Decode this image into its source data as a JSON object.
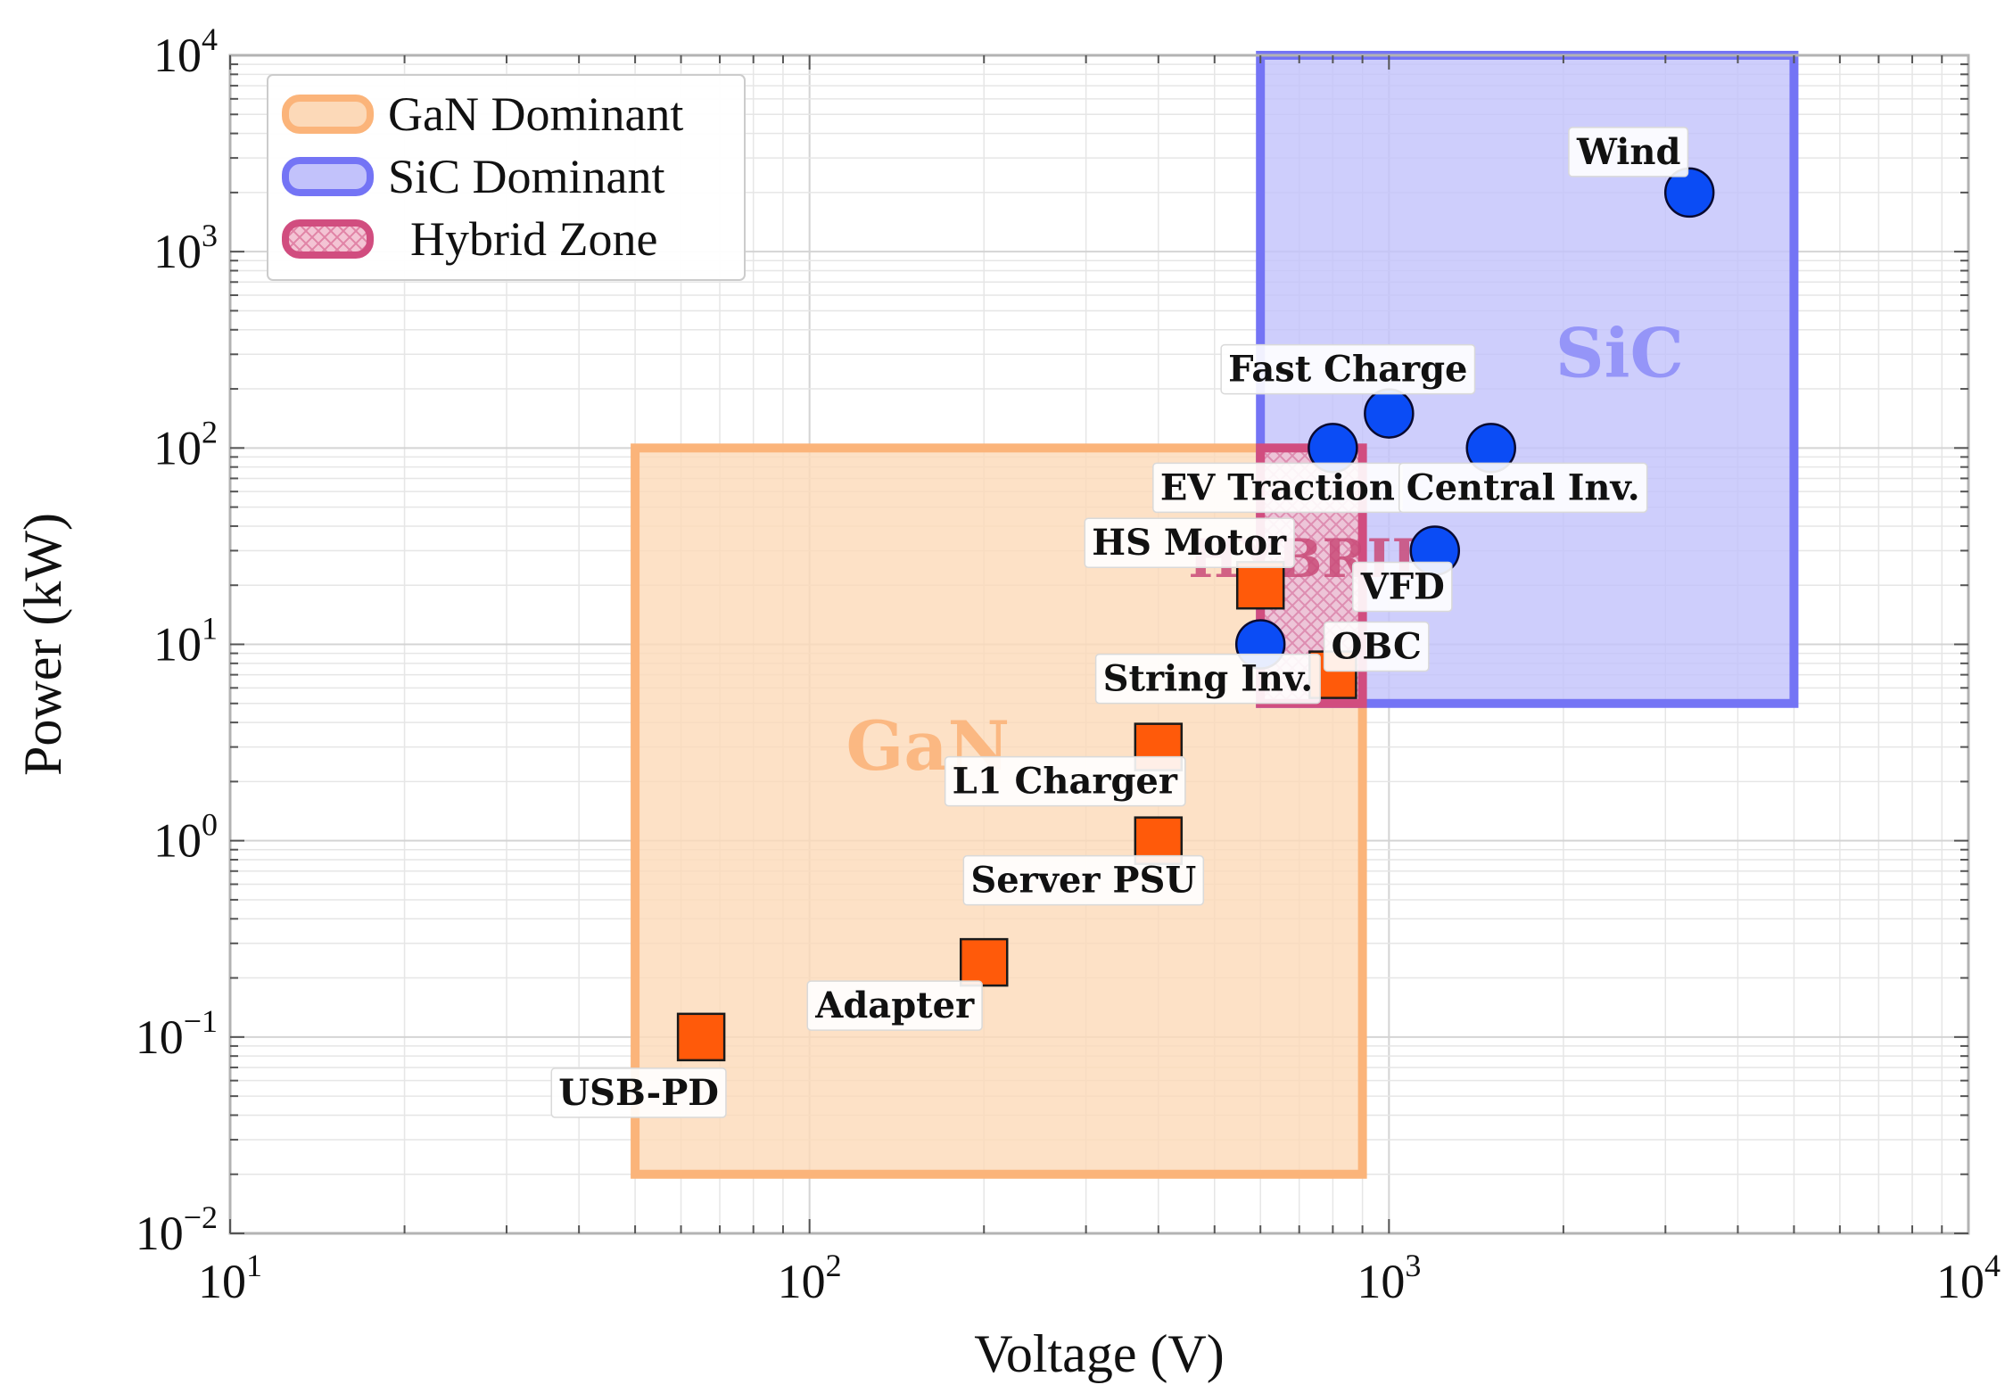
{
  "chart_data": {
    "type": "scatter",
    "xscale": "log",
    "yscale": "log",
    "xlim": [
      10,
      10000
    ],
    "ylim": [
      0.01,
      10000
    ],
    "xlabel": "Voltage (V)",
    "ylabel": "Power (kW)",
    "grid": true,
    "legend_position": "top-left",
    "x_tick_labels": [
      {
        "base": "10",
        "exp": "1",
        "value": 10
      },
      {
        "base": "10",
        "exp": "2",
        "value": 100
      },
      {
        "base": "10",
        "exp": "3",
        "value": 1000
      },
      {
        "base": "10",
        "exp": "4",
        "value": 10000
      }
    ],
    "y_tick_labels": [
      {
        "base": "10",
        "exp": "−2",
        "value": 0.01
      },
      {
        "base": "10",
        "exp": "−1",
        "value": 0.1
      },
      {
        "base": "10",
        "exp": "0",
        "value": 1
      },
      {
        "base": "10",
        "exp": "1",
        "value": 10
      },
      {
        "base": "10",
        "exp": "2",
        "value": 100
      },
      {
        "base": "10",
        "exp": "3",
        "value": 1000
      },
      {
        "base": "10",
        "exp": "4",
        "value": 10000
      }
    ],
    "regions": [
      {
        "name": "GaN Dominant",
        "region_label": "GaN",
        "x": [
          50,
          900
        ],
        "y": [
          0.02,
          100
        ],
        "fill": "#fcd9b8",
        "stroke": "#fbb47a",
        "label_color": "#fbb47a"
      },
      {
        "name": "SiC Dominant",
        "region_label": "SiC",
        "x": [
          600,
          5000
        ],
        "y": [
          5,
          10000
        ],
        "fill": "#c2c2fb",
        "stroke": "#7474f5",
        "label_color": "#8f8ff7"
      },
      {
        "name": "Hybrid Zone",
        "region_label": "HYBRID",
        "x": [
          600,
          900
        ],
        "y": [
          5,
          100
        ],
        "fill": "#f3c4d4",
        "stroke": "#d14d7f",
        "label_color": "#c94a78"
      }
    ],
    "series": [
      {
        "name": "GaN",
        "marker": "square",
        "color": "#ff5a0a",
        "points": [
          {
            "label": "USB-PD",
            "x": 65,
            "y": 0.1
          },
          {
            "label": "Adapter",
            "x": 200,
            "y": 0.24
          },
          {
            "label": "Server PSU",
            "x": 400,
            "y": 1
          },
          {
            "label": "L1 Charger",
            "x": 400,
            "y": 3
          },
          {
            "label": "String Inv.",
            "x": 800,
            "y": 7
          },
          {
            "label": "HS Motor",
            "x": 600,
            "y": 20
          }
        ]
      },
      {
        "name": "SiC",
        "marker": "circle",
        "color": "#0b4cf5",
        "points": [
          {
            "label": "OBC",
            "x": 600,
            "y": 10
          },
          {
            "label": "VFD",
            "x": 1200,
            "y": 30
          },
          {
            "label": "EV Traction",
            "x": 800,
            "y": 100
          },
          {
            "label": "Central Inv.",
            "x": 1500,
            "y": 100
          },
          {
            "label": "Fast Charge",
            "x": 1000,
            "y": 150
          },
          {
            "label": "Wind",
            "x": 3300,
            "y": 2000
          }
        ]
      }
    ]
  }
}
